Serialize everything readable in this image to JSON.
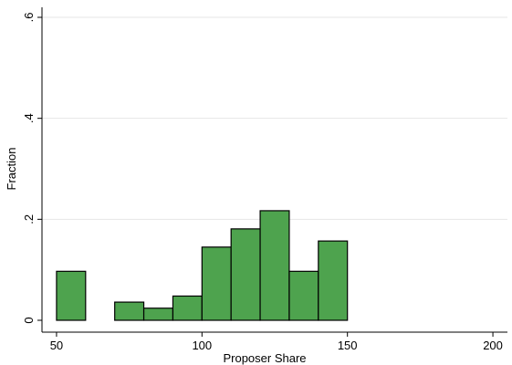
{
  "chart_data": {
    "type": "bar",
    "xlabel": "Proposer Share",
    "ylabel": "Fraction",
    "xlim": [
      45,
      205
    ],
    "ylim": [
      0,
      0.6
    ],
    "xticks": [
      50,
      100,
      150,
      200
    ],
    "xtick_labels": [
      "50",
      "100",
      "150",
      "200"
    ],
    "yticks": [
      0,
      0.2,
      0.4,
      0.6
    ],
    "ytick_labels": [
      "0",
      ".2",
      ".4",
      ".6"
    ],
    "grid": true,
    "bar_color": "#4ea34e",
    "bar_edge_color": "#000000",
    "bins": [
      {
        "x0": 50,
        "x1": 60,
        "value": 0.097
      },
      {
        "x0": 70,
        "x1": 80,
        "value": 0.036
      },
      {
        "x0": 80,
        "x1": 90,
        "value": 0.024
      },
      {
        "x0": 90,
        "x1": 100,
        "value": 0.048
      },
      {
        "x0": 100,
        "x1": 110,
        "value": 0.145
      },
      {
        "x0": 110,
        "x1": 120,
        "value": 0.181
      },
      {
        "x0": 120,
        "x1": 130,
        "value": 0.217
      },
      {
        "x0": 130,
        "x1": 140,
        "value": 0.097
      },
      {
        "x0": 140,
        "x1": 150,
        "value": 0.157
      }
    ]
  }
}
